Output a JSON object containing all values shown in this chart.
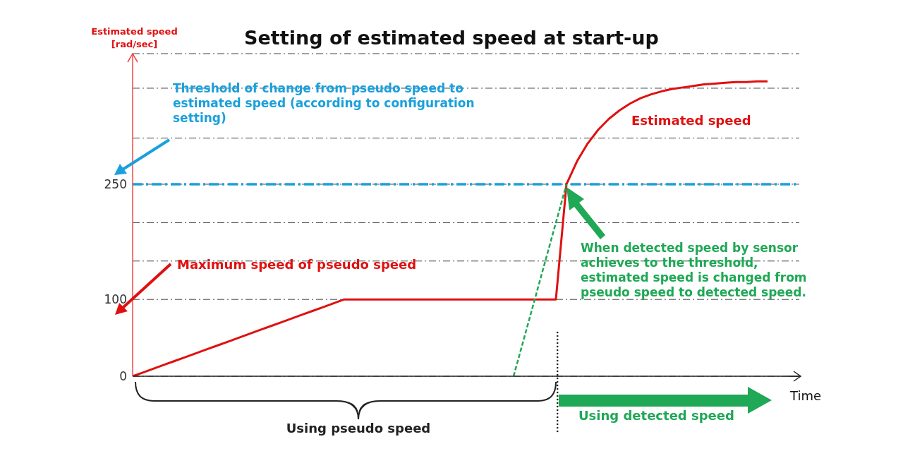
{
  "chart_data": {
    "type": "line",
    "title": "Setting of estimated speed at start-up",
    "xlabel": "Time",
    "ylabel": "Estimated speed [rad/sec]",
    "categories": [
      null,
      null,
      null,
      null,
      null,
      null,
      null,
      null,
      null,
      null,
      null,
      null,
      null,
      null,
      null,
      null,
      null,
      null,
      null,
      null,
      null,
      null,
      null,
      null,
      null,
      null,
      null,
      null,
      null,
      null,
      null,
      null,
      null,
      null,
      null,
      null,
      null,
      null,
      null,
      null,
      null,
      null,
      null,
      null,
      null,
      null,
      null,
      null,
      null,
      null,
      null,
      null,
      null,
      null,
      null,
      null,
      null,
      null,
      null,
      null,
      null,
      null,
      null,
      null
    ],
    "series": [
      {
        "color": "#e01010",
        "values": [
          0,
          5,
          10,
          15,
          20,
          25,
          30,
          35,
          40,
          45,
          50,
          55,
          60,
          65,
          70,
          75,
          80,
          85,
          90,
          95,
          100,
          100,
          100,
          100,
          100,
          100,
          100,
          100,
          100,
          100,
          100,
          100,
          100,
          100,
          100,
          100,
          100,
          100,
          100,
          100,
          100,
          250,
          280,
          303,
          321,
          335,
          346,
          355,
          362,
          367,
          371,
          374,
          376,
          378,
          380,
          381,
          382,
          383,
          383,
          384,
          384,
          null,
          null,
          null
        ]
      },
      {
        "color": "#1fa855",
        "line_style": "dashed",
        "values": [
          null,
          null,
          null,
          null,
          null,
          null,
          null,
          null,
          null,
          null,
          null,
          null,
          null,
          null,
          null,
          null,
          null,
          null,
          null,
          null,
          null,
          null,
          null,
          null,
          null,
          null,
          null,
          null,
          null,
          null,
          null,
          null,
          null,
          null,
          null,
          null,
          0,
          null,
          null,
          null,
          null,
          250,
          null,
          null,
          null,
          null,
          null,
          null,
          null,
          null,
          null,
          null,
          null,
          null,
          null,
          null,
          null,
          null,
          null,
          null,
          null,
          null,
          null,
          null
        ]
      }
    ],
    "ylim": [
      0,
      420
    ],
    "yticks": [
      0,
      100,
      {
        "value": 150,
        "label": null
      },
      {
        "value": 200,
        "label": null
      },
      250,
      {
        "value": 310,
        "label": null
      },
      {
        "value": 375,
        "label": null
      }
    ],
    "grid": "y",
    "tick_labels": "y",
    "marker": "none",
    "line_style": "solid",
    "ref_lines": [
      {
        "axis": "y",
        "value": 250,
        "label": "Threshold of change from pseudo speed to estimated speed (according to configuration setting)",
        "color": "#1aa0dc",
        "line_style": "dashdot"
      }
    ],
    "annotations": [
      "Maximum speed of pseudo  speed",
      "When detected speed by sensor achieves to the threshold, estimated speed is changed from pseudo speed to detected speed.",
      "Estimated speed",
      "Using pseudo speed",
      "Using detected speed"
    ]
  }
}
